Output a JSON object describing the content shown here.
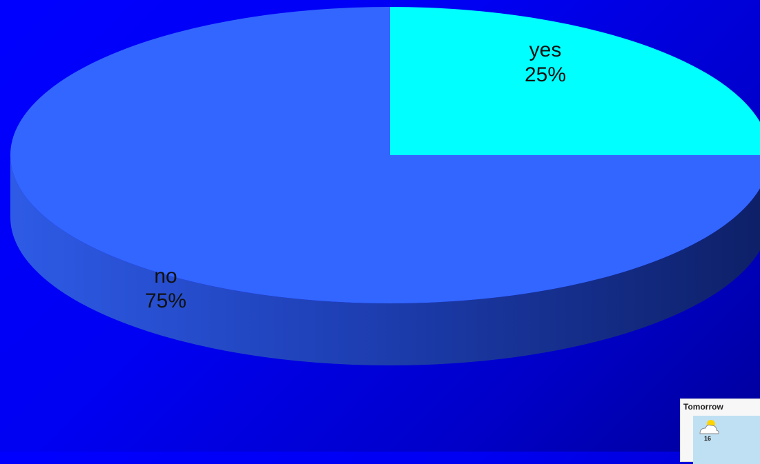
{
  "chart_data": {
    "type": "pie",
    "categories": [
      "yes",
      "no"
    ],
    "values": [
      25,
      75
    ],
    "value_labels": [
      "25%",
      "75%"
    ],
    "colors": [
      "#00ffff",
      "#3366ff"
    ],
    "style": "3d"
  },
  "thumbnail": {
    "title": "Tomorrow",
    "temperature": "16",
    "icon": "sun-cloud-icon"
  },
  "background_colors": [
    "#0000ff",
    "#000099"
  ]
}
